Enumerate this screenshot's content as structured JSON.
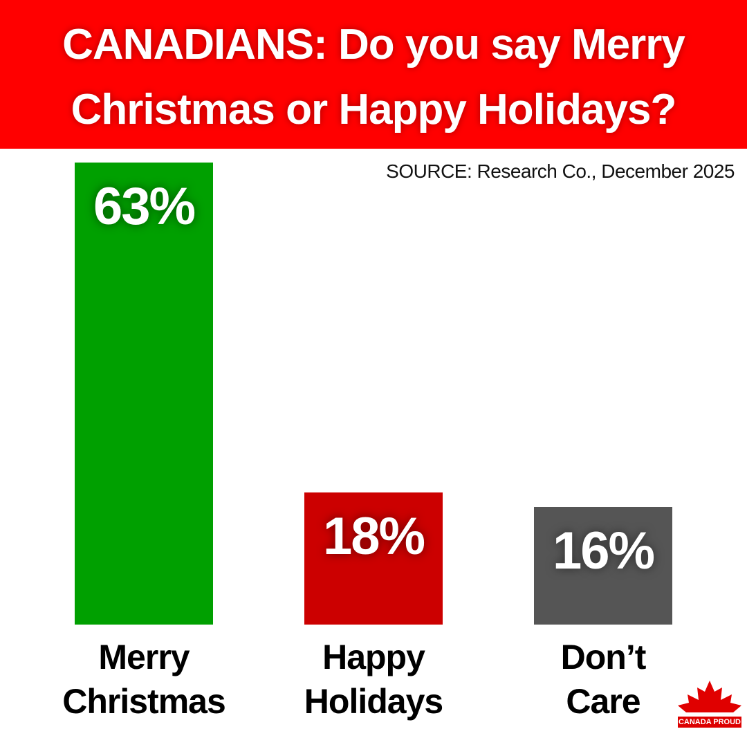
{
  "chart_data": {
    "type": "bar",
    "title": "CANADIANS: Do you say Merry Christmas or Happy Holidays?",
    "subtitle": "SOURCE: Research Co., December 2025",
    "categories": [
      "Merry Christmas",
      "Happy Holidays",
      "Don’t Care"
    ],
    "values": [
      63,
      18,
      16
    ],
    "value_labels": [
      "63%",
      "18%",
      "16%"
    ],
    "colors": [
      "#00a000",
      "#cc0000",
      "#555555"
    ],
    "logo": "CANADA PROUD"
  }
}
